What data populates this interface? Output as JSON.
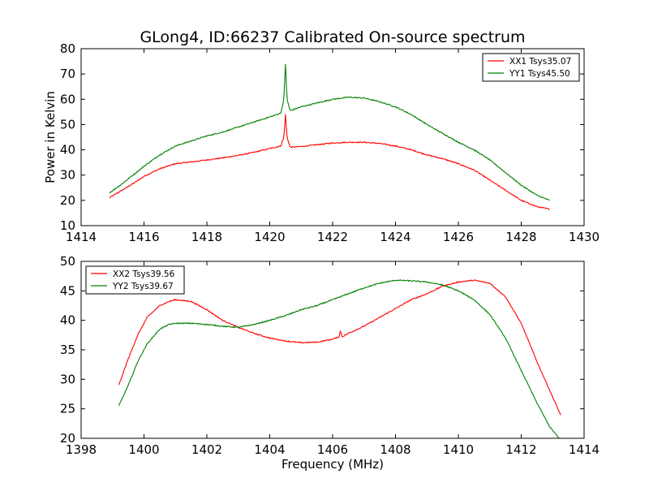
{
  "chart_data": [
    {
      "type": "line",
      "title": "GLong4, ID:66237 Calibrated On-source spectrum",
      "xlabel": "",
      "ylabel": "Power in Kelvin",
      "xlim": [
        1414,
        1430
      ],
      "ylim": [
        10,
        80
      ],
      "xticks": [
        1414,
        1416,
        1418,
        1420,
        1422,
        1424,
        1426,
        1428,
        1430
      ],
      "yticks": [
        10,
        20,
        30,
        40,
        50,
        60,
        70,
        80
      ],
      "legend_position": "top-right",
      "series": [
        {
          "name": "XX1 Tsys35.07",
          "color": "#ff0000",
          "x": [
            1414.9,
            1415.3,
            1415.7,
            1416.0,
            1416.5,
            1417.0,
            1417.5,
            1418.0,
            1418.5,
            1419.0,
            1419.5,
            1420.0,
            1420.35,
            1420.45,
            1420.5,
            1420.55,
            1420.65,
            1421.0,
            1421.5,
            1422.0,
            1422.5,
            1423.0,
            1423.5,
            1424.0,
            1424.5,
            1425.0,
            1425.5,
            1426.0,
            1426.5,
            1427.0,
            1427.5,
            1428.0,
            1428.5,
            1428.9
          ],
          "y": [
            21,
            24,
            27,
            29.5,
            32.5,
            34.5,
            35.2,
            36,
            36.8,
            37.8,
            39,
            40.5,
            41.5,
            45,
            54,
            45,
            41,
            41.3,
            42,
            42.7,
            43,
            43,
            42.5,
            41.5,
            40,
            38,
            36.5,
            34.5,
            32,
            28,
            24,
            20,
            17.5,
            16.5
          ]
        },
        {
          "name": "YY1 Tsys45.50",
          "color": "#008000",
          "x": [
            1414.9,
            1415.3,
            1415.7,
            1416.0,
            1416.5,
            1417.0,
            1417.5,
            1418.0,
            1418.5,
            1419.0,
            1419.5,
            1420.0,
            1420.35,
            1420.45,
            1420.5,
            1420.55,
            1420.65,
            1421.0,
            1421.5,
            1422.0,
            1422.5,
            1423.0,
            1423.5,
            1424.0,
            1424.5,
            1425.0,
            1425.5,
            1426.0,
            1426.5,
            1427.0,
            1427.5,
            1428.0,
            1428.5,
            1428.9
          ],
          "y": [
            23,
            26.5,
            30.5,
            33.5,
            38,
            41.5,
            43.5,
            45.5,
            47,
            49,
            51,
            53,
            54.5,
            60,
            74,
            60,
            55.5,
            57,
            58.5,
            60,
            60.8,
            60.5,
            59,
            57,
            54,
            50,
            46.5,
            43,
            40,
            36,
            31,
            26,
            22,
            20
          ]
        }
      ]
    },
    {
      "type": "line",
      "title": "",
      "xlabel": "Frequency (MHz)",
      "ylabel": "",
      "xlim": [
        1398,
        1414
      ],
      "ylim": [
        20,
        50
      ],
      "xticks": [
        1398,
        1400,
        1402,
        1404,
        1406,
        1408,
        1410,
        1412,
        1414
      ],
      "yticks": [
        20,
        25,
        30,
        35,
        40,
        45,
        50
      ],
      "legend_position": "top-left",
      "series": [
        {
          "name": "XX2 Tsys39.56",
          "color": "#ff0000",
          "x": [
            1399.2,
            1399.5,
            1399.8,
            1400.1,
            1400.5,
            1400.8,
            1401.0,
            1401.5,
            1402.0,
            1402.5,
            1403.0,
            1403.5,
            1404.0,
            1404.5,
            1405.0,
            1405.5,
            1406.0,
            1406.2,
            1406.25,
            1406.3,
            1406.5,
            1407.0,
            1407.5,
            1408.0,
            1408.5,
            1409.0,
            1409.5,
            1410.0,
            1410.5,
            1411.0,
            1411.5,
            1412.0,
            1412.5,
            1413.0,
            1413.25
          ],
          "y": [
            29,
            33.5,
            37.5,
            40.5,
            42.5,
            43.2,
            43.5,
            43.2,
            41.8,
            40,
            38.8,
            37.8,
            37,
            36.5,
            36.2,
            36.3,
            36.8,
            37.2,
            38.2,
            37.2,
            37.8,
            39,
            40.5,
            42,
            43.5,
            44.5,
            45.8,
            46.5,
            46.8,
            46.3,
            44,
            39.5,
            33,
            27,
            24
          ]
        },
        {
          "name": "YY2 Tsys39.67",
          "color": "#008000",
          "x": [
            1399.2,
            1399.5,
            1399.8,
            1400.1,
            1400.5,
            1400.8,
            1401.0,
            1401.5,
            1402.0,
            1402.5,
            1403.0,
            1403.5,
            1404.0,
            1404.5,
            1405.0,
            1405.5,
            1406.0,
            1406.5,
            1407.0,
            1407.5,
            1408.0,
            1408.5,
            1409.0,
            1409.5,
            1410.0,
            1410.5,
            1411.0,
            1411.5,
            1412.0,
            1412.5,
            1412.9,
            1413.2
          ],
          "y": [
            25.5,
            29,
            33,
            36,
            38.5,
            39.3,
            39.5,
            39.5,
            39.3,
            39,
            38.8,
            39.3,
            40,
            40.8,
            41.8,
            42.5,
            43.5,
            44.5,
            45.5,
            46.3,
            46.8,
            46.7,
            46.5,
            46,
            45,
            43.5,
            41,
            37,
            31.5,
            26,
            22,
            20
          ]
        }
      ]
    }
  ]
}
